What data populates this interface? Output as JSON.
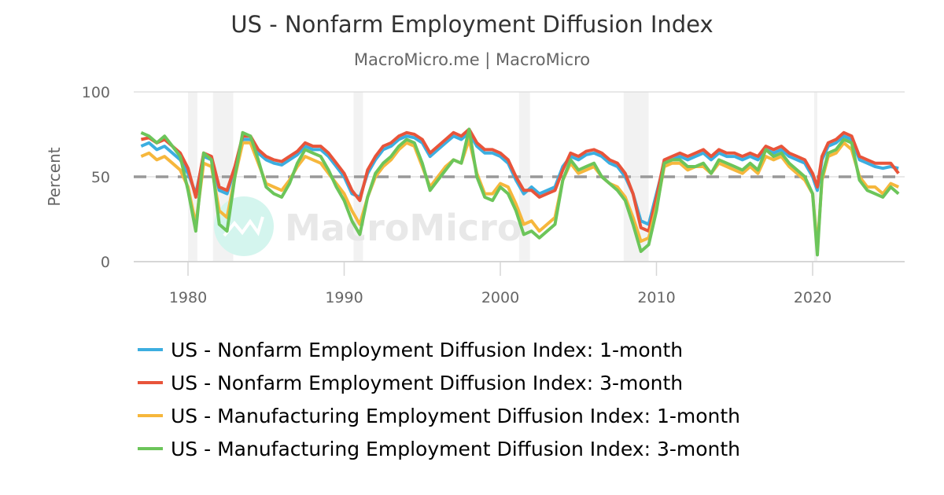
{
  "title": "US - Nonfarm Employment Diffusion Index",
  "subtitle": "MacroMicro.me | MacroMicro",
  "watermark": "MacroMicro",
  "chart_data": {
    "type": "line",
    "title": "US - Nonfarm Employment Diffusion Index",
    "subtitle": "MacroMicro.me | MacroMicro",
    "xlabel": "",
    "ylabel": "Percent",
    "ylim": [
      0,
      100
    ],
    "yticks": [
      0,
      50,
      100
    ],
    "xticks": [
      1980,
      1990,
      2000,
      2010,
      2020
    ],
    "xlim": [
      1976.6,
      2026.3
    ],
    "grid": true,
    "reference_line": {
      "y": 50,
      "style": "dashed",
      "color": "#999999"
    },
    "recession_bands": [
      [
        1980.0,
        1980.6
      ],
      [
        1981.6,
        1982.9
      ],
      [
        1990.6,
        1991.2
      ],
      [
        2001.2,
        2001.9
      ],
      [
        2007.9,
        2009.5
      ],
      [
        2020.1,
        2020.3
      ]
    ],
    "legend_position": "bottom",
    "x": [
      1977,
      1977.5,
      1978,
      1978.5,
      1979,
      1979.5,
      1980,
      1980.5,
      1981,
      1981.5,
      1982,
      1982.5,
      1983,
      1983.5,
      1984,
      1984.5,
      1985,
      1985.5,
      1986,
      1986.5,
      1987,
      1987.5,
      1988,
      1988.5,
      1989,
      1989.5,
      1990,
      1990.5,
      1991,
      1991.5,
      1992,
      1992.5,
      1993,
      1993.5,
      1994,
      1994.5,
      1995,
      1995.5,
      1996,
      1996.5,
      1997,
      1997.5,
      1998,
      1998.5,
      1999,
      1999.5,
      2000,
      2000.5,
      2001,
      2001.5,
      2002,
      2002.5,
      2003,
      2003.5,
      2004,
      2004.5,
      2005,
      2005.5,
      2006,
      2006.5,
      2007,
      2007.5,
      2008,
      2008.5,
      2009,
      2009.5,
      2010,
      2010.5,
      2011,
      2011.5,
      2012,
      2012.5,
      2013,
      2013.5,
      2014,
      2014.5,
      2015,
      2015.5,
      2016,
      2016.5,
      2017,
      2017.5,
      2018,
      2018.5,
      2019,
      2019.5,
      2020,
      2020.3,
      2020.6,
      2021,
      2021.5,
      2022,
      2022.5,
      2023,
      2023.5,
      2024,
      2024.5,
      2025,
      2025.5
    ],
    "series": [
      {
        "name": "US - Nonfarm Employment Diffusion Index: 1-month",
        "color": "#3caee0",
        "values": [
          68,
          70,
          66,
          68,
          64,
          60,
          52,
          40,
          62,
          60,
          42,
          40,
          55,
          72,
          72,
          64,
          60,
          58,
          57,
          60,
          63,
          68,
          66,
          66,
          62,
          56,
          50,
          40,
          38,
          52,
          60,
          66,
          68,
          72,
          74,
          73,
          70,
          62,
          66,
          70,
          74,
          72,
          76,
          68,
          64,
          64,
          62,
          58,
          48,
          40,
          44,
          40,
          42,
          44,
          56,
          62,
          60,
          63,
          64,
          62,
          58,
          56,
          50,
          40,
          24,
          22,
          40,
          58,
          60,
          62,
          60,
          62,
          64,
          60,
          64,
          62,
          62,
          60,
          62,
          60,
          66,
          64,
          66,
          62,
          60,
          58,
          50,
          42,
          60,
          68,
          70,
          74,
          72,
          60,
          58,
          56,
          55,
          56,
          55
        ]
      },
      {
        "name": "US - Nonfarm Employment Diffusion Index: 3-month",
        "color": "#e8543a",
        "values": [
          72,
          73,
          70,
          72,
          68,
          64,
          55,
          38,
          64,
          62,
          44,
          42,
          56,
          74,
          74,
          66,
          62,
          60,
          59,
          62,
          65,
          70,
          68,
          68,
          64,
          58,
          52,
          42,
          36,
          54,
          62,
          68,
          70,
          74,
          76,
          75,
          72,
          64,
          68,
          72,
          76,
          74,
          78,
          70,
          66,
          66,
          64,
          60,
          50,
          42,
          42,
          38,
          40,
          42,
          54,
          64,
          62,
          65,
          66,
          64,
          60,
          58,
          52,
          40,
          20,
          18,
          38,
          60,
          62,
          64,
          62,
          64,
          66,
          62,
          66,
          64,
          64,
          62,
          64,
          62,
          68,
          66,
          68,
          64,
          62,
          60,
          52,
          44,
          62,
          70,
          72,
          76,
          74,
          62,
          60,
          58,
          58,
          58,
          52
        ]
      },
      {
        "name": "US - Manufacturing Employment Diffusion Index: 1-month",
        "color": "#f6b73c",
        "values": [
          62,
          64,
          60,
          62,
          58,
          54,
          44,
          22,
          58,
          56,
          30,
          26,
          50,
          70,
          70,
          58,
          46,
          44,
          42,
          48,
          56,
          62,
          60,
          58,
          52,
          46,
          40,
          30,
          22,
          38,
          50,
          56,
          60,
          66,
          70,
          68,
          56,
          44,
          50,
          56,
          60,
          58,
          72,
          52,
          40,
          40,
          46,
          44,
          34,
          22,
          24,
          18,
          22,
          26,
          48,
          58,
          52,
          54,
          56,
          50,
          46,
          44,
          38,
          26,
          12,
          14,
          32,
          56,
          58,
          58,
          54,
          56,
          56,
          52,
          58,
          56,
          54,
          52,
          56,
          52,
          62,
          60,
          62,
          56,
          52,
          48,
          40,
          8,
          48,
          62,
          64,
          70,
          66,
          50,
          44,
          44,
          40,
          46,
          44
        ]
      },
      {
        "name": "US - Manufacturing Employment Diffusion Index: 3-month",
        "color": "#6cc55a",
        "values": [
          76,
          74,
          70,
          74,
          68,
          62,
          42,
          18,
          64,
          60,
          22,
          18,
          50,
          76,
          74,
          60,
          44,
          40,
          38,
          46,
          58,
          66,
          64,
          62,
          54,
          44,
          36,
          24,
          16,
          38,
          52,
          58,
          62,
          68,
          72,
          70,
          58,
          42,
          48,
          54,
          60,
          58,
          78,
          50,
          38,
          36,
          44,
          40,
          30,
          16,
          18,
          14,
          18,
          22,
          48,
          60,
          54,
          56,
          58,
          50,
          46,
          42,
          36,
          22,
          6,
          10,
          30,
          58,
          60,
          60,
          56,
          56,
          58,
          52,
          60,
          58,
          56,
          54,
          58,
          54,
          66,
          62,
          64,
          58,
          54,
          50,
          40,
          4,
          50,
          64,
          66,
          72,
          70,
          48,
          42,
          40,
          38,
          44,
          40
        ]
      }
    ]
  },
  "axis": {
    "y_label": "Percent",
    "y_ticks": [
      {
        "label": "100",
        "value": 100
      },
      {
        "label": "50",
        "value": 50
      },
      {
        "label": "0",
        "value": 0
      }
    ],
    "x_ticks": [
      {
        "label": "1980",
        "value": 1980
      },
      {
        "label": "1990",
        "value": 1990
      },
      {
        "label": "2000",
        "value": 2000
      },
      {
        "label": "2010",
        "value": 2010
      },
      {
        "label": "2020",
        "value": 2020
      }
    ]
  },
  "legend": [
    {
      "label": "US - Nonfarm Employment Diffusion Index: 1-month",
      "color": "#3caee0"
    },
    {
      "label": "US - Nonfarm Employment Diffusion Index: 3-month",
      "color": "#e8543a"
    },
    {
      "label": "US - Manufacturing Employment Diffusion Index: 1-month",
      "color": "#f6b73c"
    },
    {
      "label": "US - Manufacturing Employment Diffusion Index: 3-month",
      "color": "#6cc55a"
    }
  ]
}
